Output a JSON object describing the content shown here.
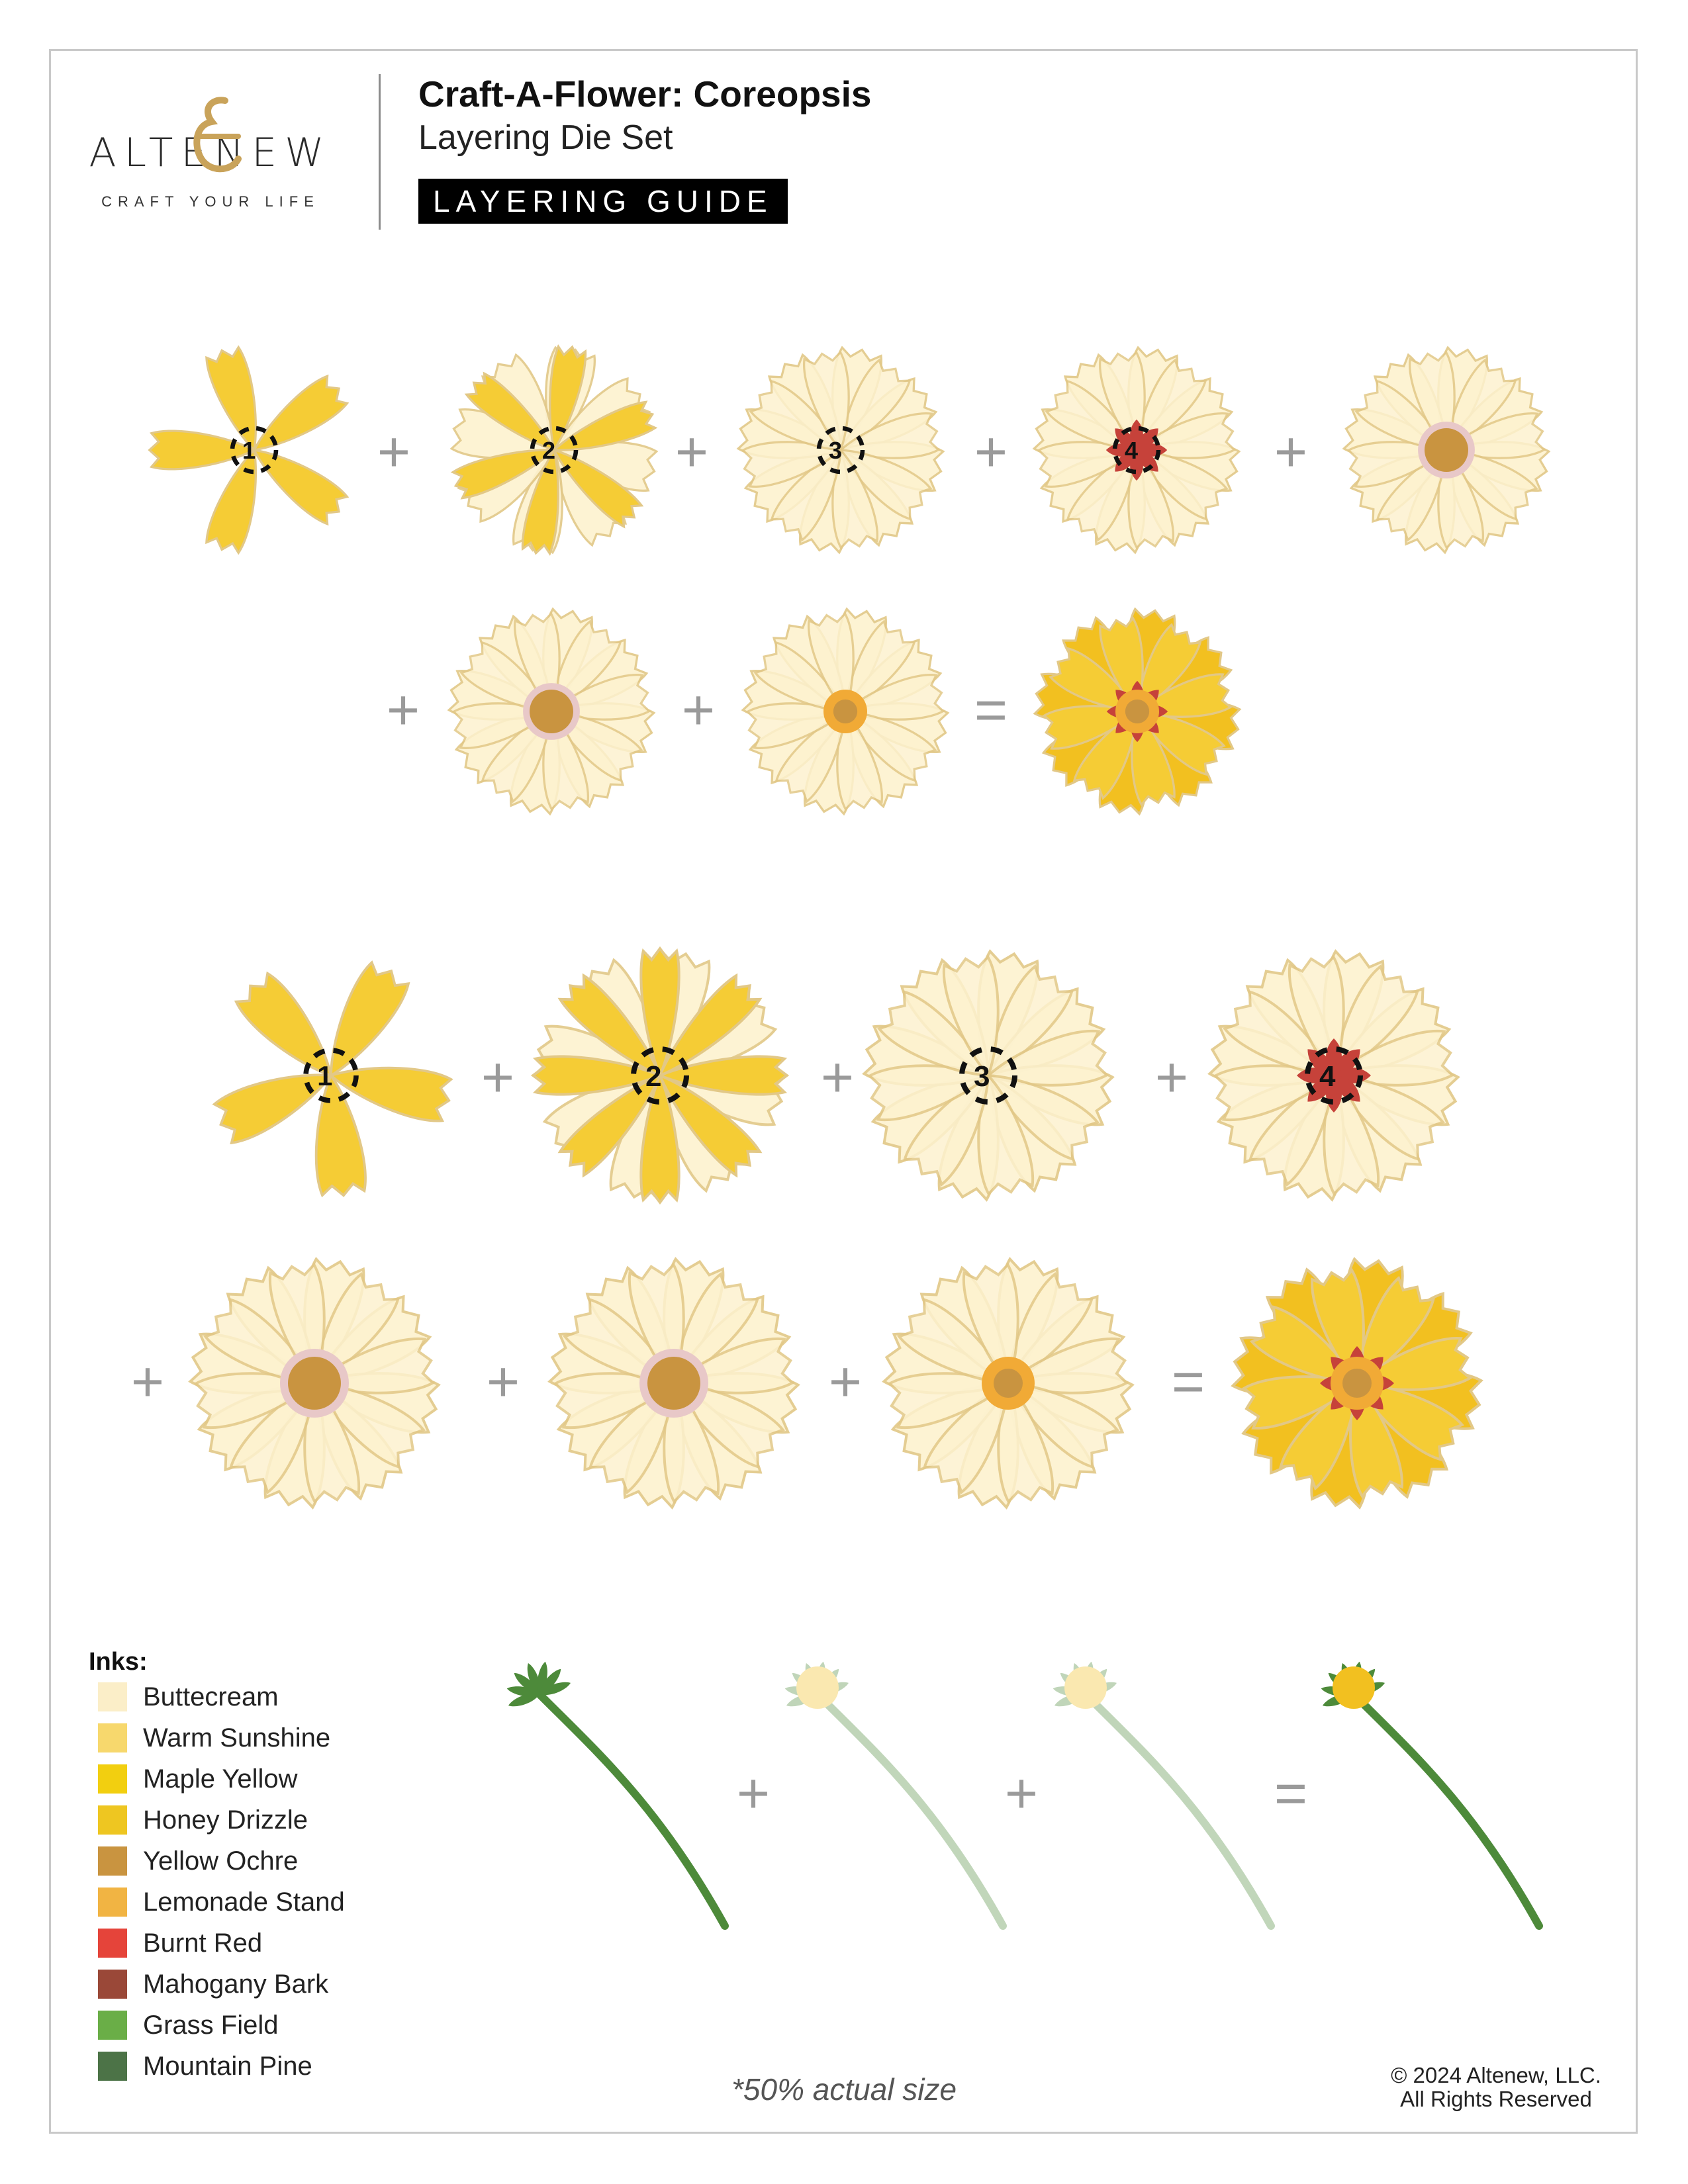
{
  "brand": {
    "name": "ALTENEW",
    "tagline": "CRAFT YOUR LIFE"
  },
  "header": {
    "title": "Craft-A-Flower: Coreopsis",
    "subtitle": "Layering Die Set",
    "guide_label": "LAYERING GUIDE"
  },
  "operators": {
    "plus": "+",
    "equals": "="
  },
  "inks": {
    "title": "Inks:",
    "items": [
      {
        "name": "Buttecream",
        "color": "#fbeec8"
      },
      {
        "name": "Warm Sunshine",
        "color": "#f7d86d"
      },
      {
        "name": "Maple Yellow",
        "color": "#f2cf10"
      },
      {
        "name": "Honey Drizzle",
        "color": "#eec621"
      },
      {
        "name": "Yellow Ochre",
        "color": "#c99440"
      },
      {
        "name": "Lemonade Stand",
        "color": "#f1b443"
      },
      {
        "name": "Burnt Red",
        "color": "#e5443a"
      },
      {
        "name": "Mahogany Bark",
        "color": "#9a4838"
      },
      {
        "name": "Grass Field",
        "color": "#6aae47"
      },
      {
        "name": "Mountain Pine",
        "color": "#4c7347"
      }
    ]
  },
  "layer_numbers": [
    "1",
    "2",
    "3",
    "4"
  ],
  "footnote": "*50% actual size",
  "copyright": {
    "line1": "© 2024 Altenew, LLC.",
    "line2": "All Rights Reserved"
  },
  "colors": {
    "pale": "#fdf2cf",
    "yellow": "#f5cc35",
    "deep_yellow": "#f2c020",
    "red": "#c6423a",
    "ochre": "#c99440",
    "orange": "#f1aa36",
    "green": "#4d8a3a",
    "operator_gray": "#9a9a9a"
  }
}
